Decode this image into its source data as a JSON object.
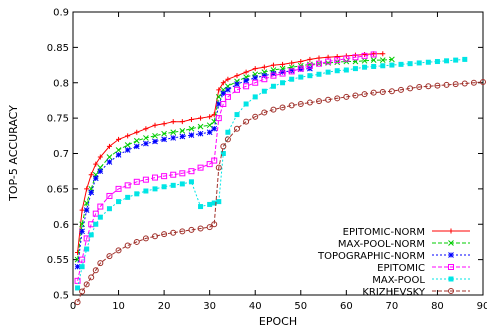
{
  "chart_data": {
    "type": "line",
    "xlabel": "EPOCH",
    "ylabel": "TOP-5 ACCURACY",
    "xlim": [
      0,
      90
    ],
    "ylim": [
      0.5,
      0.9
    ],
    "xticks": [
      "0",
      "10",
      "20",
      "30",
      "40",
      "50",
      "60",
      "70",
      "80",
      "90"
    ],
    "yticks": [
      "0.5",
      "0.55",
      "0.6",
      "0.65",
      "0.7",
      "0.75",
      "0.8",
      "0.85",
      "0.9"
    ],
    "grid": false,
    "legend_position": "bottom-right",
    "series": [
      {
        "name": "EPITOMIC-NORM",
        "color": "#ff0000",
        "marker": "plus",
        "x": [
          1,
          2,
          3,
          4,
          5,
          6,
          8,
          10,
          12,
          14,
          16,
          18,
          20,
          22,
          24,
          26,
          28,
          30,
          31,
          32,
          33,
          34,
          36,
          38,
          40,
          42,
          44,
          46,
          48,
          50,
          52,
          54,
          56,
          58,
          60,
          62,
          64,
          66,
          68
        ],
        "y": [
          0.56,
          0.62,
          0.65,
          0.67,
          0.685,
          0.695,
          0.71,
          0.72,
          0.725,
          0.73,
          0.735,
          0.74,
          0.742,
          0.745,
          0.745,
          0.748,
          0.75,
          0.752,
          0.755,
          0.79,
          0.8,
          0.805,
          0.81,
          0.815,
          0.82,
          0.822,
          0.825,
          0.826,
          0.828,
          0.83,
          0.833,
          0.835,
          0.836,
          0.837,
          0.838,
          0.839,
          0.84,
          0.841,
          0.841
        ]
      },
      {
        "name": "MAX-POOL-NORM",
        "color": "#00cc00",
        "marker": "x",
        "x": [
          1,
          2,
          3,
          4,
          5,
          6,
          8,
          10,
          12,
          14,
          16,
          18,
          20,
          22,
          24,
          26,
          28,
          30,
          31,
          32,
          33,
          34,
          36,
          38,
          40,
          42,
          44,
          46,
          48,
          50,
          52,
          54,
          56,
          58,
          60,
          62,
          64,
          66,
          68,
          70
        ],
        "y": [
          0.55,
          0.6,
          0.63,
          0.65,
          0.67,
          0.68,
          0.695,
          0.705,
          0.712,
          0.718,
          0.722,
          0.725,
          0.728,
          0.73,
          0.732,
          0.735,
          0.738,
          0.74,
          0.745,
          0.78,
          0.79,
          0.795,
          0.802,
          0.808,
          0.812,
          0.815,
          0.818,
          0.82,
          0.822,
          0.824,
          0.826,
          0.827,
          0.828,
          0.829,
          0.83,
          0.83,
          0.831,
          0.832,
          0.832,
          0.833
        ]
      },
      {
        "name": "TOPOGRAPHIC-NORM",
        "color": "#0000ff",
        "marker": "star",
        "x": [
          1,
          2,
          3,
          4,
          5,
          6,
          8,
          10,
          12,
          14,
          16,
          18,
          20,
          22,
          24,
          26,
          28,
          30,
          31,
          32,
          33,
          34,
          36,
          38,
          40,
          42,
          44,
          46,
          48,
          50,
          52
        ],
        "y": [
          0.54,
          0.59,
          0.62,
          0.645,
          0.665,
          0.675,
          0.688,
          0.698,
          0.705,
          0.71,
          0.714,
          0.717,
          0.72,
          0.722,
          0.724,
          0.726,
          0.728,
          0.73,
          0.735,
          0.77,
          0.785,
          0.79,
          0.798,
          0.803,
          0.807,
          0.81,
          0.813,
          0.815,
          0.817,
          0.819,
          0.82
        ]
      },
      {
        "name": "EPITOMIC",
        "color": "#ff00ff",
        "marker": "square",
        "x": [
          1,
          2,
          3,
          4,
          5,
          6,
          8,
          10,
          12,
          14,
          16,
          18,
          20,
          22,
          24,
          26,
          28,
          30,
          31,
          32,
          33,
          34,
          36,
          38,
          40,
          42,
          44,
          46,
          48,
          50,
          52,
          54,
          56,
          58,
          60,
          62,
          64,
          66
        ],
        "y": [
          0.52,
          0.55,
          0.58,
          0.6,
          0.615,
          0.625,
          0.64,
          0.65,
          0.655,
          0.66,
          0.663,
          0.666,
          0.668,
          0.67,
          0.672,
          0.675,
          0.68,
          0.685,
          0.69,
          0.75,
          0.77,
          0.78,
          0.79,
          0.795,
          0.8,
          0.805,
          0.81,
          0.813,
          0.816,
          0.82,
          0.824,
          0.827,
          0.83,
          0.832,
          0.834,
          0.836,
          0.838,
          0.84
        ]
      },
      {
        "name": "MAX-POOL",
        "color": "#00e5e5",
        "marker": "square-filled",
        "x": [
          1,
          2,
          3,
          4,
          5,
          6,
          8,
          10,
          12,
          14,
          16,
          18,
          20,
          22,
          24,
          26,
          28,
          30,
          31,
          32,
          33,
          34,
          36,
          38,
          40,
          42,
          44,
          46,
          48,
          50,
          52,
          54,
          56,
          58,
          60,
          62,
          64,
          66,
          68,
          70,
          72,
          74,
          76,
          78,
          80,
          82,
          84,
          86
        ],
        "y": [
          0.51,
          0.54,
          0.565,
          0.585,
          0.6,
          0.61,
          0.622,
          0.632,
          0.638,
          0.643,
          0.647,
          0.65,
          0.653,
          0.655,
          0.657,
          0.66,
          0.625,
          0.628,
          0.63,
          0.632,
          0.7,
          0.73,
          0.755,
          0.77,
          0.78,
          0.788,
          0.795,
          0.8,
          0.805,
          0.808,
          0.81,
          0.812,
          0.815,
          0.817,
          0.818,
          0.82,
          0.822,
          0.823,
          0.824,
          0.825,
          0.826,
          0.827,
          0.828,
          0.829,
          0.83,
          0.831,
          0.832,
          0.833
        ]
      },
      {
        "name": "KRIZHEVSKY",
        "color": "#a0302a",
        "marker": "circle",
        "x": [
          1,
          2,
          3,
          4,
          5,
          6,
          8,
          10,
          12,
          14,
          16,
          18,
          20,
          22,
          24,
          26,
          28,
          30,
          31,
          32,
          33,
          34,
          36,
          38,
          40,
          42,
          44,
          46,
          48,
          50,
          52,
          54,
          56,
          58,
          60,
          62,
          64,
          66,
          68,
          70,
          72,
          74,
          76,
          78,
          80,
          82,
          84,
          86,
          88,
          90
        ],
        "y": [
          0.49,
          0.505,
          0.515,
          0.525,
          0.535,
          0.545,
          0.555,
          0.563,
          0.57,
          0.575,
          0.58,
          0.583,
          0.586,
          0.588,
          0.59,
          0.592,
          0.594,
          0.596,
          0.6,
          0.68,
          0.71,
          0.72,
          0.735,
          0.745,
          0.752,
          0.758,
          0.762,
          0.765,
          0.768,
          0.77,
          0.772,
          0.774,
          0.776,
          0.778,
          0.78,
          0.782,
          0.784,
          0.786,
          0.787,
          0.788,
          0.79,
          0.792,
          0.794,
          0.795,
          0.796,
          0.797,
          0.798,
          0.799,
          0.8,
          0.801
        ]
      }
    ]
  }
}
